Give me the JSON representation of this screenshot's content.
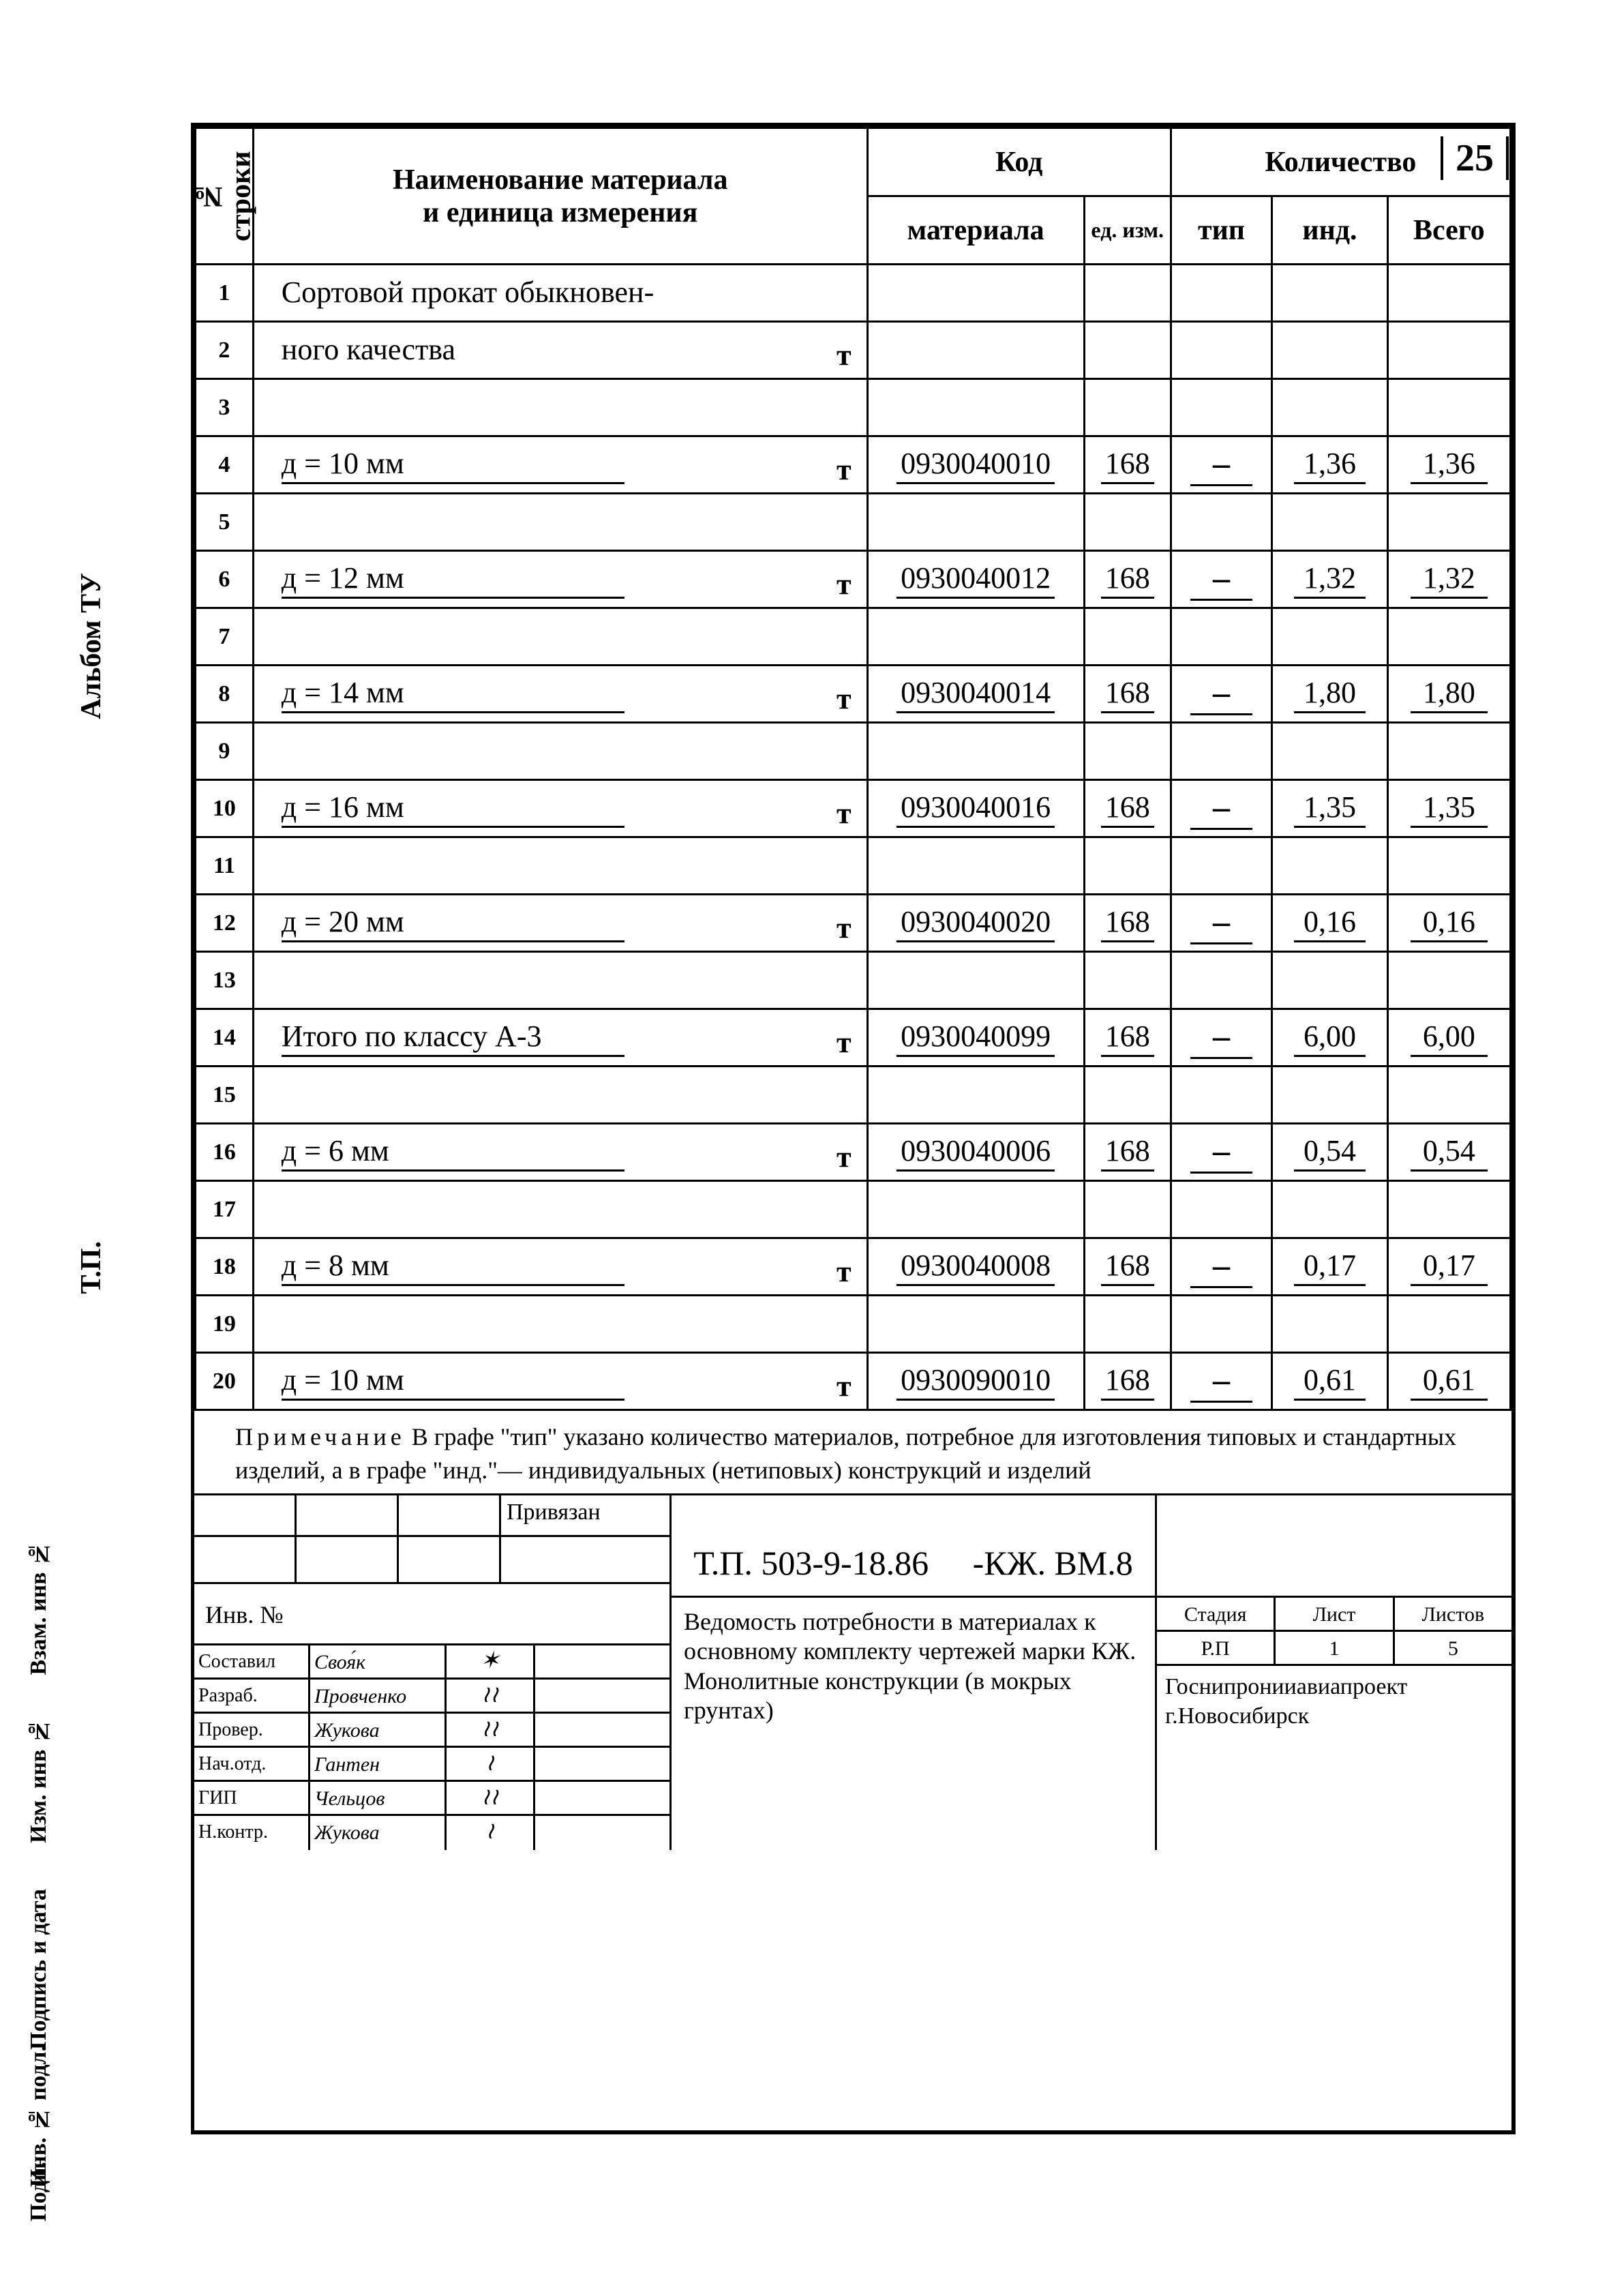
{
  "page_number": "25",
  "side_labels": {
    "l1": "Альбом ТУ",
    "l2": "Т.П.",
    "l3": "Взам. инв №",
    "l4": "Изм. инв №",
    "l5": "Подпись и дата",
    "l6": "Инв. № подл.",
    "l7": "Подп."
  },
  "headers": {
    "num": "№ строки",
    "name_l1": "Наименование материала",
    "name_l2": "и единица измерения",
    "code": "Код",
    "code_mat": "материала",
    "code_unit": "ед. изм.",
    "qty": "Количество",
    "qty_type": "тип",
    "qty_ind": "инд.",
    "qty_total": "Всего"
  },
  "rows": [
    {
      "n": "1",
      "name": "Сортовой прокат обыкновен-",
      "marker": "",
      "underline": false,
      "code": "",
      "unit": "",
      "type": "",
      "ind": "",
      "total": ""
    },
    {
      "n": "2",
      "name": "ного качества",
      "marker": "т",
      "underline": false,
      "code": "",
      "unit": "",
      "type": "",
      "ind": "",
      "total": ""
    },
    {
      "n": "3",
      "name": "",
      "marker": "",
      "underline": false,
      "code": "",
      "unit": "",
      "type": "",
      "ind": "",
      "total": ""
    },
    {
      "n": "4",
      "name": "д = 10 мм",
      "marker": "т",
      "underline": true,
      "code": "0930040010",
      "unit": "168",
      "type": "–",
      "ind": "1,36",
      "total": "1,36"
    },
    {
      "n": "5",
      "name": "",
      "marker": "",
      "underline": false,
      "code": "",
      "unit": "",
      "type": "",
      "ind": "",
      "total": ""
    },
    {
      "n": "6",
      "name": "д = 12 мм",
      "marker": "т",
      "underline": true,
      "code": "0930040012",
      "unit": "168",
      "type": "–",
      "ind": "1,32",
      "total": "1,32"
    },
    {
      "n": "7",
      "name": "",
      "marker": "",
      "underline": false,
      "code": "",
      "unit": "",
      "type": "",
      "ind": "",
      "total": ""
    },
    {
      "n": "8",
      "name": "д = 14 мм",
      "marker": "т",
      "underline": true,
      "code": "0930040014",
      "unit": "168",
      "type": "–",
      "ind": "1,80",
      "total": "1,80"
    },
    {
      "n": "9",
      "name": "",
      "marker": "",
      "underline": false,
      "code": "",
      "unit": "",
      "type": "",
      "ind": "",
      "total": ""
    },
    {
      "n": "10",
      "name": "д = 16 мм",
      "marker": "т",
      "underline": true,
      "code": "0930040016",
      "unit": "168",
      "type": "–",
      "ind": "1,35",
      "total": "1,35"
    },
    {
      "n": "11",
      "name": "",
      "marker": "",
      "underline": false,
      "code": "",
      "unit": "",
      "type": "",
      "ind": "",
      "total": ""
    },
    {
      "n": "12",
      "name": "д = 20 мм",
      "marker": "т",
      "underline": true,
      "code": "0930040020",
      "unit": "168",
      "type": "–",
      "ind": "0,16",
      "total": "0,16"
    },
    {
      "n": "13",
      "name": "",
      "marker": "",
      "underline": false,
      "code": "",
      "unit": "",
      "type": "",
      "ind": "",
      "total": ""
    },
    {
      "n": "14",
      "name": "Итого по классу А-3",
      "marker": "т",
      "underline": true,
      "code": "0930040099",
      "unit": "168",
      "type": "–",
      "ind": "6,00",
      "total": "6,00"
    },
    {
      "n": "15",
      "name": "",
      "marker": "",
      "underline": false,
      "code": "",
      "unit": "",
      "type": "",
      "ind": "",
      "total": ""
    },
    {
      "n": "16",
      "name": "д = 6 мм",
      "marker": "т",
      "underline": true,
      "code": "0930040006",
      "unit": "168",
      "type": "–",
      "ind": "0,54",
      "total": "0,54"
    },
    {
      "n": "17",
      "name": "",
      "marker": "",
      "underline": false,
      "code": "",
      "unit": "",
      "type": "",
      "ind": "",
      "total": ""
    },
    {
      "n": "18",
      "name": "д = 8 мм",
      "marker": "т",
      "underline": true,
      "code": "0930040008",
      "unit": "168",
      "type": "–",
      "ind": "0,17",
      "total": "0,17"
    },
    {
      "n": "19",
      "name": "",
      "marker": "",
      "underline": false,
      "code": "",
      "unit": "",
      "type": "",
      "ind": "",
      "total": ""
    },
    {
      "n": "20",
      "name": "д = 10 мм",
      "marker": "т",
      "underline": true,
      "code": "0930090010",
      "unit": "168",
      "type": "–",
      "ind": "0,61",
      "total": "0,61"
    }
  ],
  "note": {
    "word": "Примечание",
    "text": "В графе \"тип\" указано количество материалов, потребное для изготовления типовых и стандартных изделий, а в графе \"инд.\"— индивидуальных (нетиповых) конструкций и изделий"
  },
  "stamp": {
    "priv": "Привязан",
    "inv_label": "Инв. №",
    "signers": [
      {
        "role": "Составил",
        "name": "Своя́к",
        "sign": "✶"
      },
      {
        "role": "Разраб.",
        "name": "Провченко",
        "sign": "≀≀"
      },
      {
        "role": "Провер.",
        "name": "Жукова",
        "sign": "≀≀"
      },
      {
        "role": "Нач.отд.",
        "name": "Гантен",
        "sign": "≀"
      },
      {
        "role": "ГИП",
        "name": "Чельцов",
        "sign": "≀≀"
      },
      {
        "role": "Н.контр.",
        "name": "Жукова",
        "sign": "≀"
      }
    ],
    "doc_code": "Т.П.  503-9-18.86",
    "suffix": "-КЖ. ВМ.8",
    "title": "Ведомость потребности в материалах к основному комплекту чертежей марки КЖ. Монолитные конструкции (в мокрых грунтах)",
    "meta_h": {
      "a": "Стадия",
      "b": "Лист",
      "c": "Листов"
    },
    "meta_v": {
      "a": "Р.П",
      "b": "1",
      "c": "5"
    },
    "org": "Госнипронииавиапроект\nг.Новосибирск"
  }
}
